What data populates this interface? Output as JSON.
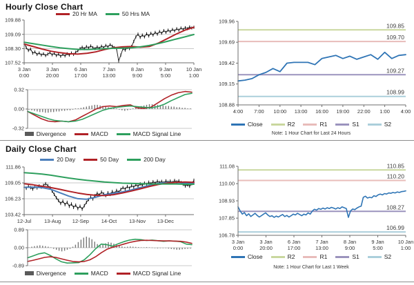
{
  "hourly_section_title": "Hourly Close Chart",
  "daily_section_title": "Daily Close Chart",
  "chart_data": [
    {
      "id": "hourly-price",
      "type": "line",
      "title": "Hourly Close Chart",
      "ylim": [
        107.52,
        109.88
      ],
      "yticks": [
        107.52,
        108.3,
        109.09,
        109.88
      ],
      "ytick_labels": [
        "107.52",
        "108.30",
        "109.09",
        "109.88"
      ],
      "xticks": [
        "3 Jan|0:00",
        "3 Jan|20:00",
        "6 Jan|17:00",
        "7 Jan|13:00",
        "8 Jan|9:00",
        "9 Jan|5:00",
        "10 Jan|1:00"
      ],
      "series": [
        {
          "name": "Close",
          "color": "#111111",
          "width": 0.9,
          "style": "sticks",
          "values": [
            108.6,
            108.35,
            108.2,
            108.28,
            108.05,
            108.12,
            107.98,
            108.06,
            107.95,
            108.02,
            107.92,
            108.0,
            108.08,
            107.96,
            108.04,
            107.92,
            108.0,
            107.88,
            107.98,
            107.9,
            108.02,
            107.94,
            108.06,
            107.98,
            108.1,
            108.18,
            108.3,
            108.38,
            108.3,
            108.42,
            108.34,
            108.45,
            108.36,
            108.3,
            108.4,
            108.32,
            108.44,
            108.36,
            108.48,
            108.4,
            108.52,
            108.44,
            108.36,
            108.3,
            107.62,
            107.95,
            108.3,
            108.22,
            108.36,
            108.3,
            108.42,
            108.7,
            108.95,
            109.1,
            108.92,
            109.05,
            108.95,
            109.12,
            109.0,
            109.15,
            109.05,
            109.2,
            109.1,
            109.25,
            109.15,
            109.3,
            109.2,
            109.32,
            109.24,
            109.36,
            109.28,
            109.4,
            109.32,
            109.44,
            109.36,
            109.46,
            109.4,
            109.5,
            109.44,
            109.48
          ]
        },
        {
          "name": "20 Hr MA",
          "color": "#b02126",
          "width": 2,
          "values": [
            108.55,
            108.42,
            108.28,
            108.16,
            108.08,
            108.02,
            108.0,
            108.04,
            108.12,
            108.25,
            108.35,
            108.4,
            108.42,
            108.38,
            108.42,
            108.6,
            108.85,
            109.1,
            109.32,
            109.48
          ]
        },
        {
          "name": "50 Hrs MA",
          "color": "#2d9f5d",
          "width": 2,
          "values": [
            108.65,
            108.58,
            108.5,
            108.42,
            108.35,
            108.3,
            108.26,
            108.25,
            108.27,
            108.3,
            108.32,
            108.33,
            108.35,
            108.4,
            108.48,
            108.58,
            108.7,
            108.83,
            108.95,
            109.08
          ]
        }
      ],
      "legend": [
        {
          "label": "20 Hr MA",
          "color": "#b02126"
        },
        {
          "label": "50 Hrs MA",
          "color": "#2d9f5d"
        }
      ]
    },
    {
      "id": "hourly-macd",
      "type": "macd",
      "ylim": [
        -0.32,
        0.32
      ],
      "yticks": [
        -0.32,
        0,
        0.32
      ],
      "ytick_labels": [
        "-0.32",
        "0.00",
        "0.32"
      ],
      "bars": {
        "name": "Divergence",
        "color": "#787878",
        "values": [
          -0.01,
          -0.02,
          -0.03,
          -0.04,
          -0.05,
          -0.05,
          -0.06,
          -0.06,
          -0.05,
          -0.05,
          -0.04,
          -0.04,
          -0.03,
          -0.03,
          -0.02,
          -0.02,
          -0.01,
          0.01,
          0.01,
          0.02,
          0.03,
          0.04,
          0.05,
          0.06,
          0.07,
          0.07,
          0.06,
          0.05,
          0.04,
          0.03,
          0.02,
          0.02,
          0.01,
          -0.01,
          -0.02,
          -0.03,
          -0.02,
          -0.01,
          0.01,
          0.02,
          0.04,
          0.05,
          0.06,
          0.07,
          0.08,
          0.08,
          0.07,
          0.07,
          0.06,
          0.06,
          0.05,
          0.05,
          0.04,
          0.04,
          0.03,
          0.03,
          0.02,
          0.02,
          0.01,
          0.01
        ]
      },
      "series": [
        {
          "name": "MACD",
          "color": "#b02126",
          "width": 1.6,
          "values": [
            -0.04,
            -0.1,
            -0.16,
            -0.2,
            -0.21,
            -0.2,
            -0.21,
            -0.18,
            -0.12,
            -0.06,
            0.0,
            0.04,
            0.05,
            0.04,
            0.06,
            0.07,
            0.02,
            0.01,
            0.03,
            0.1,
            0.17,
            0.23,
            0.27,
            0.29,
            0.28
          ]
        },
        {
          "name": "MACD Signal Line",
          "color": "#2d9f5d",
          "width": 1.6,
          "values": [
            -0.04,
            -0.08,
            -0.12,
            -0.16,
            -0.19,
            -0.2,
            -0.21,
            -0.2,
            -0.17,
            -0.12,
            -0.07,
            -0.02,
            0.01,
            0.03,
            0.04,
            0.05,
            0.04,
            0.03,
            0.02,
            0.04,
            0.08,
            0.14,
            0.19,
            0.24,
            0.26
          ]
        }
      ],
      "legend": [
        {
          "label": "Divergence",
          "color": "#5a5a5a",
          "swatch": "bars"
        },
        {
          "label": "MACD",
          "color": "#b02126"
        },
        {
          "label": "MACD Signal Line",
          "color": "#2d9f5d"
        }
      ]
    },
    {
      "id": "hourly-pivot",
      "type": "line",
      "ylim": [
        108.88,
        109.96
      ],
      "yticks": [
        108.88,
        109.15,
        109.42,
        109.69,
        109.96
      ],
      "ytick_labels": [
        "108.88",
        "109.15",
        "109.42",
        "109.69",
        "109.96"
      ],
      "xticks": [
        "4:00",
        "7:00",
        "10:00",
        "13:00",
        "16:00",
        "19:00",
        "22:00",
        "1:00",
        "4:00"
      ],
      "hlines": [
        {
          "name": "R2",
          "value": 109.85,
          "label": "109.85",
          "color": "#c9d79e"
        },
        {
          "name": "R1",
          "value": 109.7,
          "label": "109.70",
          "color": "#e8bcba"
        },
        {
          "name": "S1",
          "value": 109.27,
          "label": "109.27",
          "color": "#9b93bd"
        },
        {
          "name": "S2",
          "value": 108.99,
          "label": "108.99",
          "color": "#abcfdb"
        }
      ],
      "series": [
        {
          "name": "Close",
          "color": "#2e74b5",
          "width": 1.8,
          "values": [
            109.19,
            109.2,
            109.22,
            109.27,
            109.3,
            109.35,
            109.31,
            109.42,
            109.43,
            109.43,
            109.43,
            109.4,
            109.48,
            109.5,
            109.52,
            109.48,
            109.51,
            109.47,
            109.5,
            109.53,
            109.47,
            109.56,
            109.48,
            109.52,
            109.53
          ]
        }
      ],
      "legend": [
        {
          "label": "Close",
          "color": "#2e74b5"
        },
        {
          "label": "R2",
          "color": "#c9d79e"
        },
        {
          "label": "R1",
          "color": "#e8bcba"
        },
        {
          "label": "S1",
          "color": "#9b93bd"
        },
        {
          "label": "S2",
          "color": "#abcfdb"
        }
      ],
      "note": "Note: 1 Hour Chart for Last 24 Hours"
    },
    {
      "id": "daily-price",
      "type": "line",
      "title": "Daily Close Chart",
      "ylim": [
        103.42,
        111.86
      ],
      "yticks": [
        103.42,
        106.23,
        109.05,
        111.86
      ],
      "ytick_labels": [
        "103.42",
        "106.23",
        "109.05",
        "111.86"
      ],
      "xticks": [
        "12-Jul",
        "13-Aug",
        "12-Sep",
        "14-Oct",
        "13-Nov",
        "13-Dec"
      ],
      "xtick_pos": [
        0,
        0.167,
        0.333,
        0.5,
        0.667,
        0.833
      ],
      "series": [
        {
          "name": "Close",
          "color": "#111111",
          "width": 0.9,
          "style": "sticks",
          "values": [
            108.3,
            108.1,
            108.45,
            108.2,
            107.95,
            108.35,
            108.15,
            108.5,
            108.3,
            108.6,
            108.9,
            108.55,
            108.2,
            107.6,
            107.0,
            106.4,
            105.9,
            105.4,
            105.8,
            105.2,
            105.6,
            104.9,
            105.3,
            104.7,
            105.1,
            104.5,
            104.9,
            104.4,
            105.0,
            105.6,
            106.1,
            106.5,
            106.2,
            106.8,
            107.2,
            106.9,
            107.4,
            107.1,
            106.8,
            107.3,
            107.0,
            107.5,
            107.2,
            107.7,
            107.4,
            107.9,
            108.2,
            107.95,
            108.4,
            108.1,
            108.55,
            108.3,
            108.7,
            108.45,
            108.85,
            108.6,
            109.0,
            108.75,
            109.15,
            108.9,
            109.25,
            109.0,
            109.35,
            109.1,
            109.3,
            109.05,
            109.4,
            109.15,
            109.35,
            109.1,
            109.45,
            109.2,
            109.4,
            109.1,
            108.8,
            108.5,
            108.7,
            108.45,
            108.9,
            109.5
          ]
        },
        {
          "name": "20 Day",
          "color": "#4a7ebb",
          "width": 2,
          "values": [
            108.25,
            108.3,
            108.2,
            107.9,
            107.3,
            106.7,
            106.25,
            106.15,
            106.5,
            106.95,
            107.2,
            107.45,
            107.8,
            108.2,
            108.6,
            108.95,
            109.1,
            109.1,
            109.05,
            109.0
          ]
        },
        {
          "name": "50 Day",
          "color": "#b02126",
          "width": 2,
          "values": [
            108.9,
            108.7,
            108.45,
            108.2,
            107.9,
            107.55,
            107.25,
            107.0,
            106.85,
            106.8,
            106.95,
            107.25,
            107.6,
            108.0,
            108.4,
            108.75,
            109.0,
            109.15,
            109.2,
            109.15
          ]
        },
        {
          "name": "200 Day",
          "color": "#2d9f5d",
          "width": 2,
          "values": [
            110.85,
            110.75,
            110.6,
            110.4,
            110.15,
            109.9,
            109.7,
            109.5,
            109.35,
            109.2,
            109.1,
            109.0,
            108.95,
            108.9,
            108.85,
            108.85,
            108.85,
            108.85,
            108.8,
            108.8
          ]
        }
      ],
      "legend": [
        {
          "label": "20 Day",
          "color": "#4a7ebb"
        },
        {
          "label": "50 Day",
          "color": "#b02126"
        },
        {
          "label": "200 Day",
          "color": "#2d9f5d"
        }
      ]
    },
    {
      "id": "daily-macd",
      "type": "macd",
      "ylim": [
        -0.89,
        0.89
      ],
      "yticks": [
        -0.89,
        0,
        0.89
      ],
      "ytick_labels": [
        "-0.89",
        "0.00",
        "0.89"
      ],
      "bars": {
        "name": "Divergence",
        "color": "#787878",
        "values": [
          0.02,
          0.05,
          0.08,
          0.1,
          0.12,
          0.1,
          0.08,
          0.05,
          0.02,
          -0.05,
          -0.1,
          -0.15,
          -0.18,
          -0.15,
          -0.1,
          -0.05,
          0.05,
          0.15,
          0.28,
          0.4,
          0.5,
          0.55,
          0.5,
          0.42,
          0.3,
          0.18,
          0.1,
          0.15,
          0.22,
          0.28,
          0.25,
          0.2,
          0.15,
          0.1,
          0.06,
          0.04,
          0.05,
          0.06,
          0.05,
          0.04,
          0.03,
          0.02,
          0.02,
          0.03,
          0.02,
          0.01,
          -0.02,
          -0.03,
          -0.02,
          -0.01,
          -0.02,
          -0.04,
          -0.06,
          -0.08,
          -0.1,
          -0.1,
          -0.08,
          -0.06,
          -0.05,
          -0.04
        ]
      },
      "series": [
        {
          "name": "MACD",
          "color": "#2d9f5d",
          "width": 1.6,
          "values": [
            -0.5,
            -0.4,
            -0.3,
            -0.25,
            -0.38,
            -0.55,
            -0.7,
            -0.76,
            -0.75,
            -0.74,
            -0.6,
            -0.35,
            -0.05,
            0.18,
            0.15,
            0.08,
            0.2,
            0.3,
            0.38,
            0.42,
            0.4,
            0.36,
            0.38,
            0.35,
            0.32,
            0.34,
            0.33,
            0.3,
            0.18,
            0.15
          ]
        },
        {
          "name": "MACD Signal Line",
          "color": "#b02126",
          "width": 1.6,
          "values": [
            -0.68,
            -0.62,
            -0.55,
            -0.48,
            -0.45,
            -0.48,
            -0.55,
            -0.62,
            -0.68,
            -0.7,
            -0.68,
            -0.6,
            -0.45,
            -0.25,
            -0.08,
            0.02,
            0.1,
            0.18,
            0.26,
            0.32,
            0.36,
            0.37,
            0.36,
            0.35,
            0.34,
            0.34,
            0.33,
            0.32,
            0.28,
            0.22
          ]
        }
      ],
      "legend": [
        {
          "label": "Divergence",
          "color": "#5a5a5a",
          "swatch": "bars"
        },
        {
          "label": "MACD",
          "color": "#2d9f5d"
        },
        {
          "label": "MACD Signal Line",
          "color": "#b02126"
        }
      ]
    },
    {
      "id": "weekly-pivot",
      "type": "line",
      "ylim": [
        106.78,
        111.08
      ],
      "yticks": [
        106.78,
        107.85,
        108.93,
        110.0,
        111.08
      ],
      "ytick_labels": [
        "106.78",
        "107.85",
        "108.93",
        "110.00",
        "111.08"
      ],
      "xticks": [
        "3 Jan|0:00",
        "3 Jan|20:00",
        "6 Jan|17:00",
        "7 Jan|13:00",
        "8 Jan|9:00",
        "9 Jan|5:00",
        "10 Jan|1:00"
      ],
      "hlines": [
        {
          "name": "R2",
          "value": 110.85,
          "label": "110.85",
          "color": "#c9d79e"
        },
        {
          "name": "R1",
          "value": 110.2,
          "label": "110.20",
          "color": "#e8bcba"
        },
        {
          "name": "S1",
          "value": 108.27,
          "label": "108.27",
          "color": "#9b93bd"
        },
        {
          "name": "S2",
          "value": 106.99,
          "label": "106.99",
          "color": "#abcfdb"
        }
      ],
      "series": [
        {
          "name": "Close",
          "color": "#2e74b5",
          "width": 1.6,
          "values": [
            108.55,
            108.3,
            108.1,
            108.2,
            108.0,
            108.12,
            107.95,
            108.05,
            108.15,
            108.02,
            107.92,
            108.0,
            108.1,
            108.18,
            108.05,
            107.95,
            108.0,
            107.9,
            107.98,
            107.92,
            108.0,
            108.08,
            107.95,
            108.02,
            107.92,
            108.0,
            108.1,
            108.05,
            108.15,
            108.08,
            108.0,
            108.1,
            108.05,
            108.18,
            108.1,
            108.3,
            108.4,
            108.35,
            108.45,
            108.4,
            108.48,
            108.42,
            108.5,
            108.45,
            108.52,
            108.48,
            108.42,
            108.5,
            108.45,
            108.55,
            108.5,
            108.45,
            107.9,
            108.3,
            108.42,
            108.38,
            108.48,
            108.55,
            108.6,
            109.15,
            109.22,
            109.1,
            109.15,
            109.12,
            109.25,
            109.2,
            109.3,
            109.35,
            109.3,
            109.38,
            109.35,
            109.42,
            109.4,
            109.45,
            109.42,
            109.48,
            109.45,
            109.5,
            109.52,
            109.55
          ]
        }
      ],
      "legend": [
        {
          "label": "Close",
          "color": "#2e74b5"
        },
        {
          "label": "R2",
          "color": "#c9d79e"
        },
        {
          "label": "R1",
          "color": "#e8bcba"
        },
        {
          "label": "S1",
          "color": "#9b93bd"
        },
        {
          "label": "S2",
          "color": "#abcfdb"
        }
      ],
      "note": "Note: 1 Hour Chart for Last 1 Week"
    }
  ]
}
